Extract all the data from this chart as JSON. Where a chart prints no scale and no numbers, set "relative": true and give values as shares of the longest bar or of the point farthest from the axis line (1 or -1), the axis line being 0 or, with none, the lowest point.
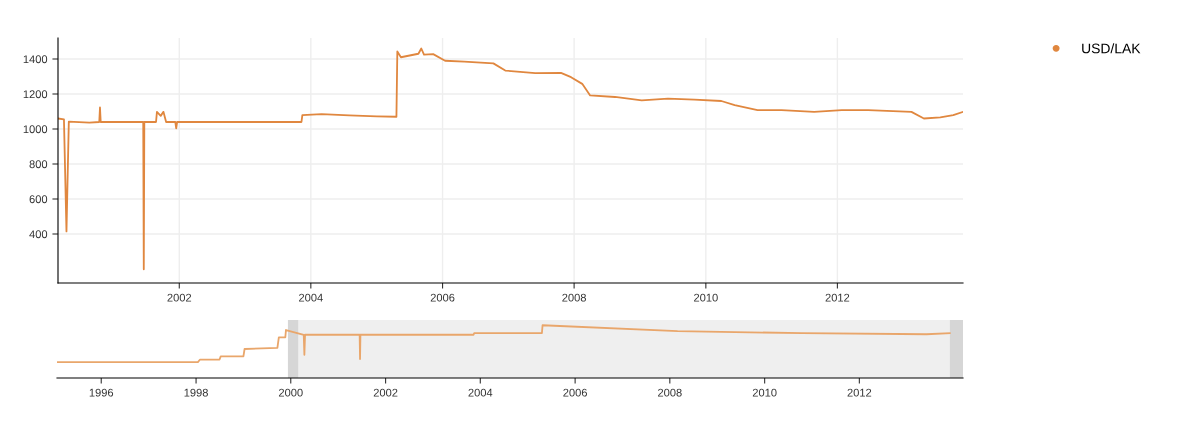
{
  "chart_data": [
    {
      "type": "line",
      "x": [
        "2000-02-28",
        "2000-04-01",
        "2000-04-15",
        "2000-04-28",
        "2000-08-20",
        "2000-10-14",
        "2000-10-18",
        "2000-10-22",
        "2001-06-15",
        "2001-06-18",
        "2001-06-21",
        "2001-08-25",
        "2001-08-30",
        "2001-09-20",
        "2001-10-05",
        "2001-10-20",
        "2001-12-10",
        "2001-12-15",
        "2001-12-20",
        "2003-11-10",
        "2003-11-15",
        "2004-03-01",
        "2004-08-01",
        "2005-01-01",
        "2005-04-20",
        "2005-04-25",
        "2005-05-15",
        "2005-08-20",
        "2005-09-05",
        "2005-09-20",
        "2005-11-10",
        "2006-01-15",
        "2006-05-01",
        "2006-10-10",
        "2006-12-15",
        "2007-05-30",
        "2007-10-20",
        "2007-12-15",
        "2008-02-15",
        "2008-03-30",
        "2008-08-15",
        "2009-01-10",
        "2009-06-05",
        "2009-10-30",
        "2010-03-28",
        "2010-06-10",
        "2010-10-15",
        "2011-02-25",
        "2011-08-25",
        "2012-01-25",
        "2012-06-20",
        "2013-02-15",
        "2013-04-25",
        "2013-07-25",
        "2013-10-05",
        "2013-11-28"
      ],
      "series": [
        {
          "name": "USD/LAK",
          "color": "#e0873f",
          "values": [
            1060,
            1055,
            415,
            1042,
            1036,
            1040,
            1123,
            1040,
            1040,
            198,
            1040,
            1040,
            1098,
            1075,
            1098,
            1040,
            1040,
            1004,
            1040,
            1040,
            1079,
            1085,
            1078,
            1072,
            1070,
            1443,
            1410,
            1430,
            1460,
            1425,
            1428,
            1390,
            1385,
            1375,
            1334,
            1319,
            1321,
            1296,
            1258,
            1192,
            1183,
            1164,
            1174,
            1168,
            1160,
            1136,
            1108,
            1108,
            1098,
            1108,
            1108,
            1098,
            1060,
            1066,
            1079,
            1098
          ]
        }
      ],
      "xlim": [
        "2000-02-28",
        "2013-11-28"
      ],
      "xticks": [
        "2002",
        "2004",
        "2006",
        "2008",
        "2010",
        "2012"
      ],
      "ylim": [
        120,
        1520
      ],
      "yticks": [
        400,
        600,
        800,
        1000,
        1200,
        1400
      ],
      "grid": true,
      "legend": "top right",
      "marker": "none",
      "line_style": "solid"
    },
    {
      "type": "line",
      "relative": true,
      "tick_labels": "x",
      "x": [
        "1995-02-01",
        "1998-01-15",
        "1998-02-01",
        "1998-07-01",
        "1998-07-10",
        "1999-01-01",
        "1999-01-10",
        "1999-09-20",
        "1999-10-01",
        "1999-11-20",
        "1999-11-25",
        "2000-04-10",
        "2000-04-15",
        "2000-04-20",
        "2001-06-15",
        "2001-06-18",
        "2001-06-21",
        "2003-11-10",
        "2003-11-15",
        "2005-04-20",
        "2005-04-25",
        "2008-03-01",
        "2010-10-15",
        "2013-06-01",
        "2013-11-28"
      ],
      "series": [
        {
          "color": "#e9a66b",
          "values": [
            0.3,
            0.3,
            0.35,
            0.35,
            0.41,
            0.41,
            0.55,
            0.57,
            0.77,
            0.77,
            0.91,
            0.82,
            0.44,
            0.82,
            0.82,
            0.36,
            0.82,
            0.82,
            0.85,
            0.85,
            1.0,
            0.89,
            0.85,
            0.83,
            0.85
          ]
        }
      ],
      "xlim": [
        "1995-01-25",
        "2014-03-10"
      ],
      "xticks": [
        "1996",
        "1998",
        "2000",
        "2002",
        "2004",
        "2006",
        "2008",
        "2010",
        "2012"
      ],
      "bands": [
        {
          "axis": "x",
          "from": "2000-02-28",
          "to": "2013-11-28",
          "color": "#efefef"
        },
        {
          "axis": "x",
          "from": "1999-12-10",
          "to": "2000-02-28",
          "color": "#d6d6d6"
        },
        {
          "axis": "x",
          "from": "2013-11-28",
          "to": "2014-03-10",
          "color": "#d6d6d6"
        }
      ],
      "grid": false,
      "legend": false,
      "marker": "none",
      "line_style": "solid"
    }
  ]
}
